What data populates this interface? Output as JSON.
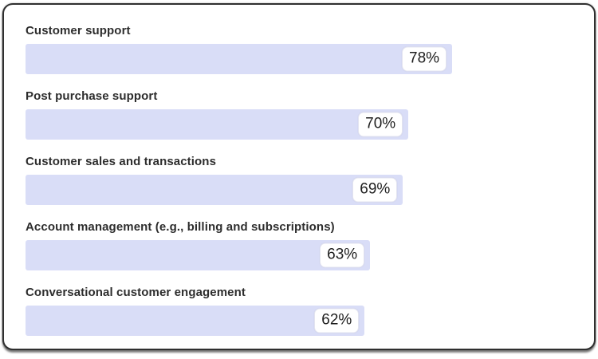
{
  "chart_data": {
    "type": "bar",
    "orientation": "horizontal",
    "title": "",
    "xlabel": "",
    "ylabel": "",
    "xlim": [
      0,
      100
    ],
    "unit": "%",
    "grid": false,
    "legend": false,
    "categories": [
      "Customer support",
      "Post purchase support",
      "Customer sales and transactions",
      "Account management (e.g., billing and subscriptions)",
      "Conversational customer engagement"
    ],
    "values": [
      78,
      70,
      69,
      63,
      62
    ],
    "value_labels": [
      "78%",
      "70%",
      "69%",
      "63%",
      "62%"
    ]
  },
  "colors": {
    "bar_fill": "#d9ddf7",
    "chip_bg": "#ffffff",
    "chip_border": "#e3e4f0",
    "label_color": "#2d2d2d",
    "value_color": "#1e1e1e",
    "card_border": "#2f2f2f",
    "card_bg": "#ffffff"
  }
}
